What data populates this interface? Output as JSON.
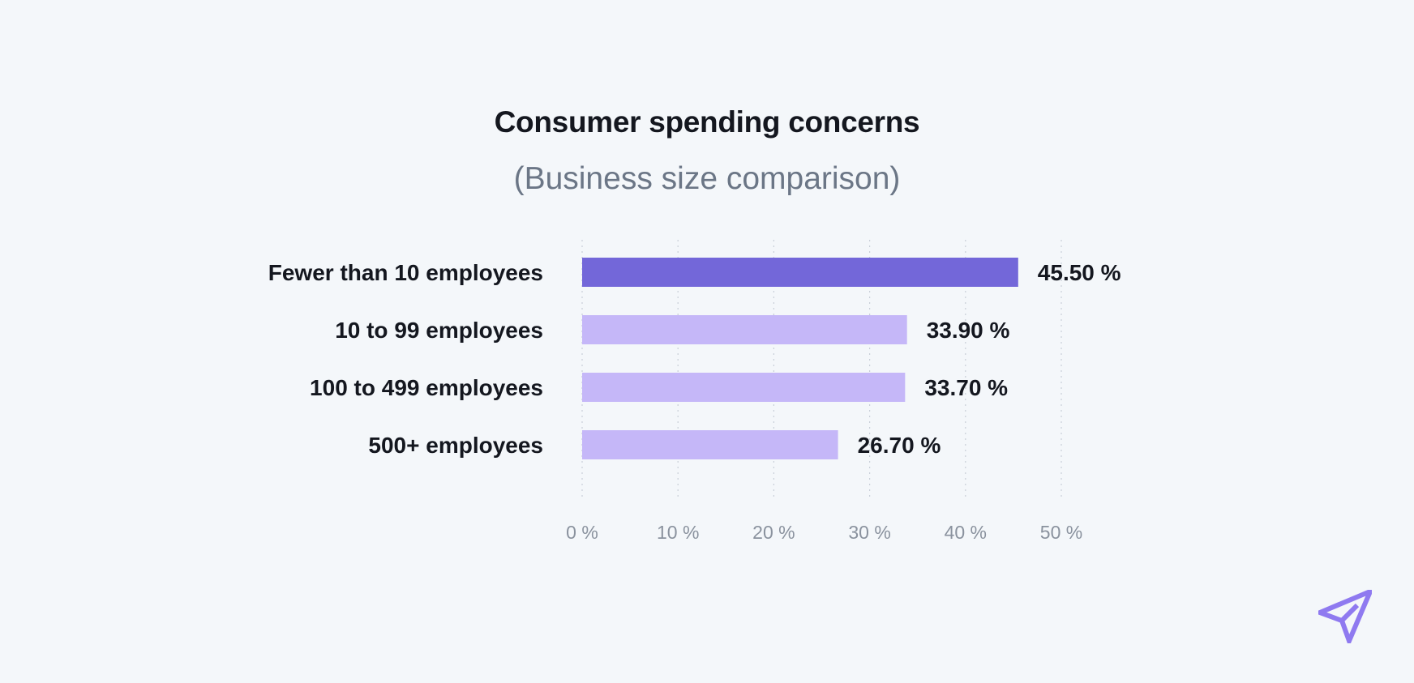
{
  "chart_data": {
    "type": "bar",
    "orientation": "horizontal",
    "title": "Consumer spending concerns",
    "subtitle": "(Business size comparison)",
    "categories": [
      "Fewer than 10 employees",
      "10 to 99 employees",
      "100 to 499 employees",
      "500+ employees"
    ],
    "values": [
      45.5,
      33.9,
      33.7,
      26.7
    ],
    "value_labels": [
      "45.50 %",
      "33.90 %",
      "33.70 %",
      "26.70 %"
    ],
    "highlighted_index": 0,
    "xlim": [
      0,
      50
    ],
    "x_ticks": [
      0,
      10,
      20,
      30,
      40,
      50
    ],
    "x_tick_labels": [
      "0 %",
      "10 %",
      "20 %",
      "30 %",
      "40 %",
      "50 %"
    ],
    "xlabel": "",
    "ylabel": "",
    "grid": "vertical-dotted",
    "legend": "none"
  },
  "colors": {
    "background": "#f4f7fa",
    "highlight_bar": "#7367d9",
    "bar": "#c5b7f8",
    "text": "#14171f",
    "subtitle": "#6b7686",
    "tick": "#8a929e",
    "logo": "#8f7af0"
  },
  "logo": {
    "icon": "paper-plane-icon"
  }
}
